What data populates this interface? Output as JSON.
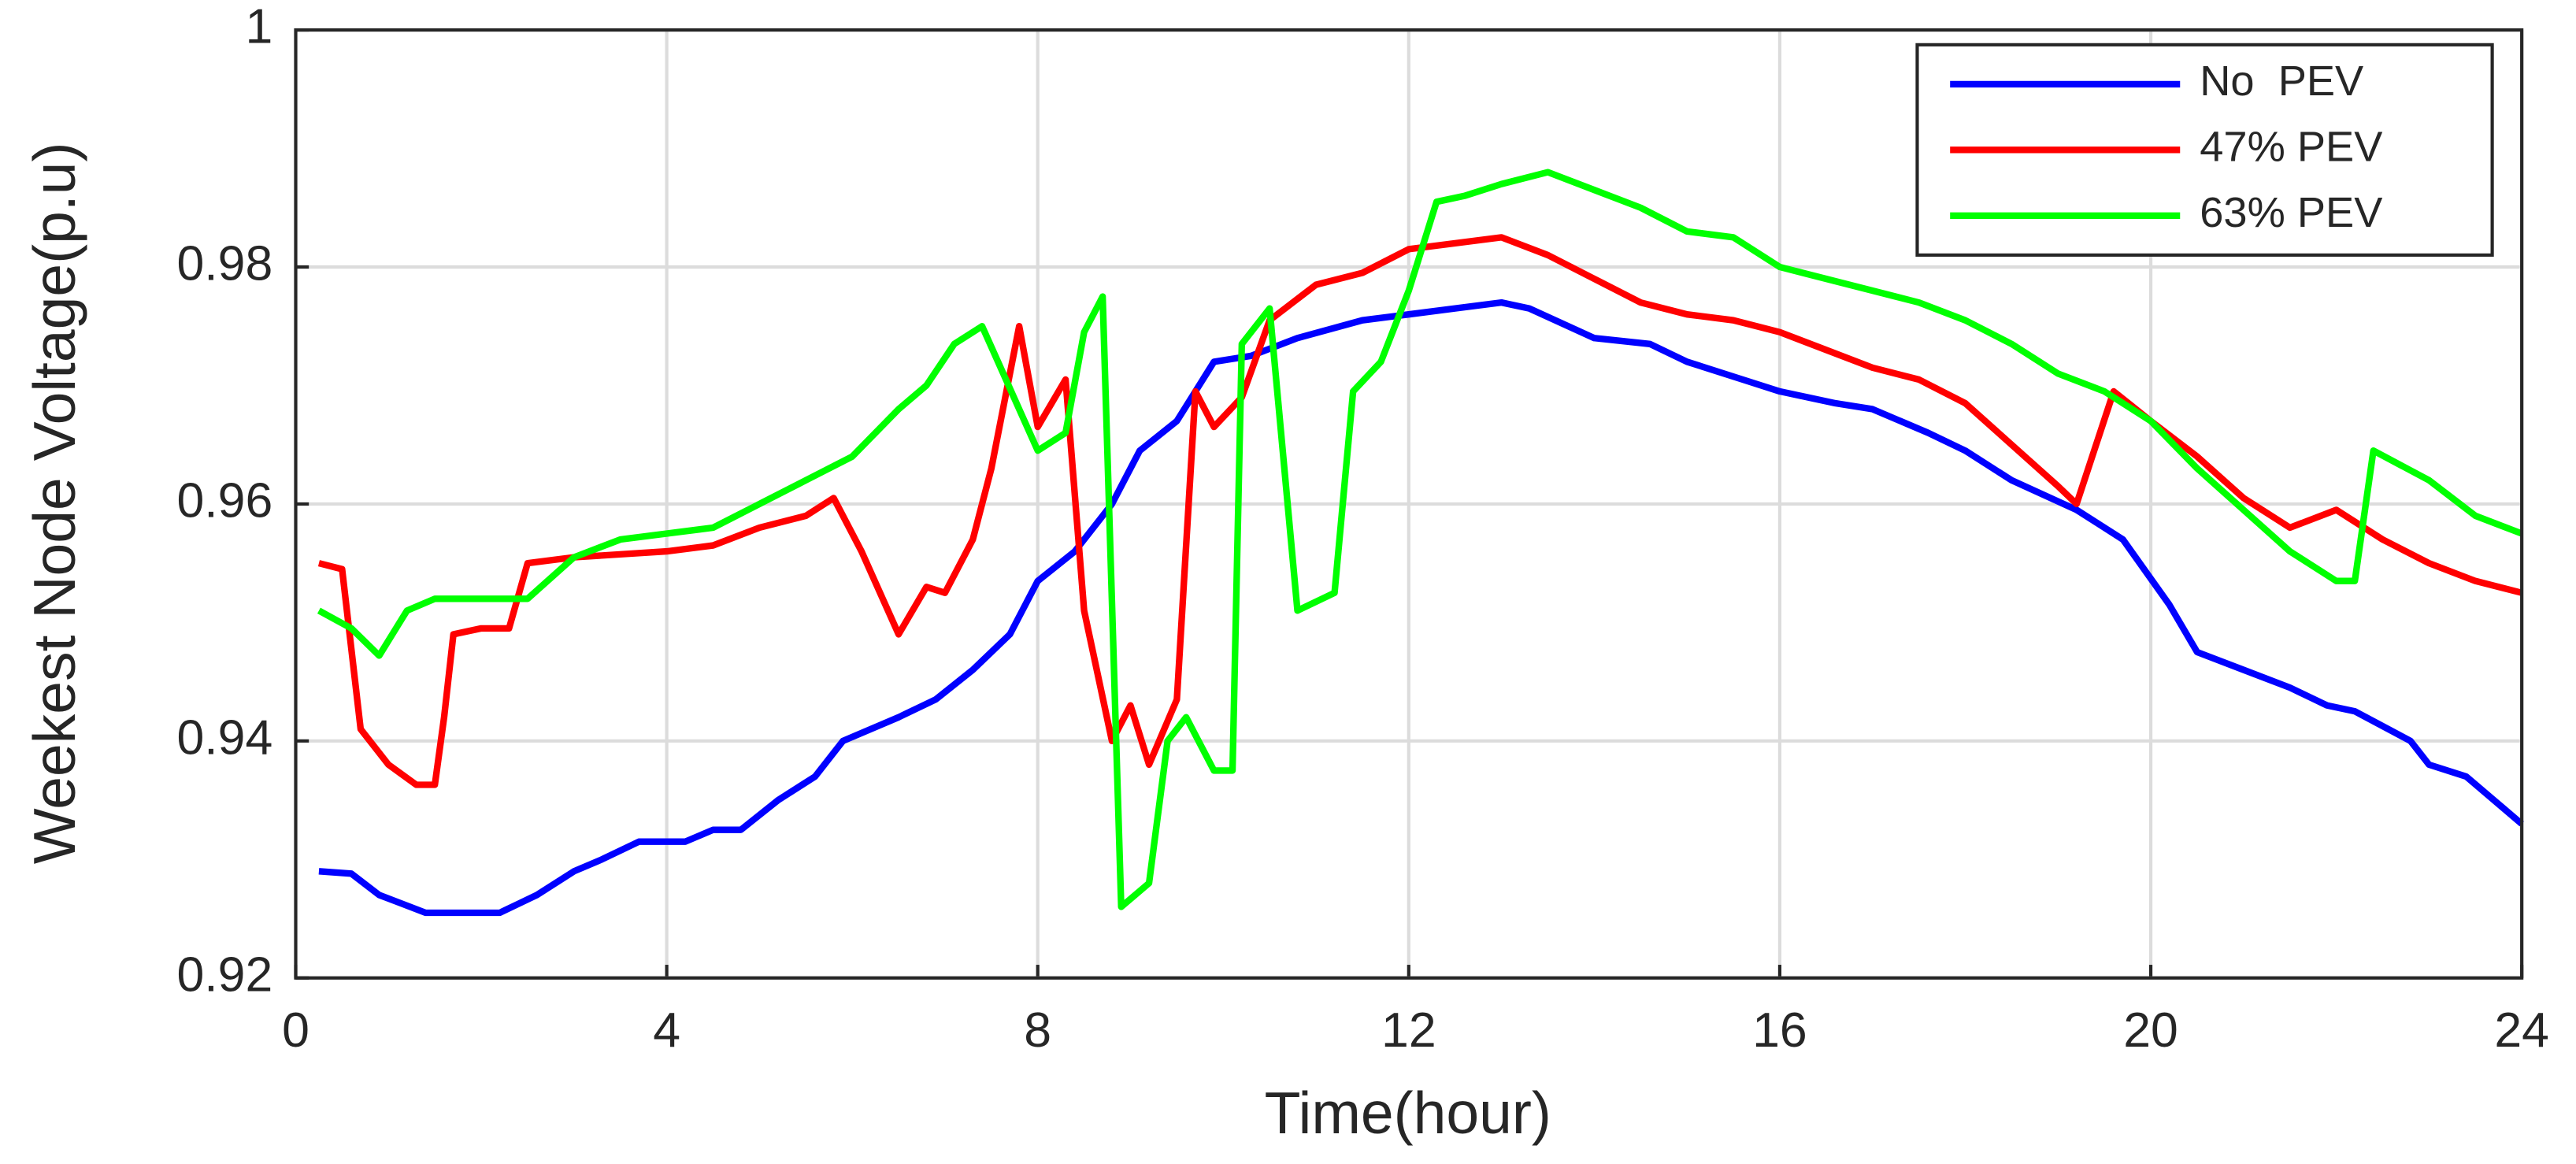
{
  "chart_data": {
    "type": "line",
    "xlabel": "Time(hour)",
    "ylabel": "Weekest Node Voltage(p.u)",
    "xlim": [
      0,
      24
    ],
    "xticks": [
      0,
      4,
      8,
      12,
      16,
      20,
      24
    ],
    "ylim": [
      0.92,
      1
    ],
    "yticks": [
      0.92,
      0.94,
      0.96,
      0.98,
      1
    ],
    "grid": true,
    "legend": "upper right",
    "series": [
      {
        "name": "No  PEV",
        "color": "#0000ff",
        "x": [
          0.25,
          0.6,
          0.9,
          1.4,
          2.2,
          2.6,
          3.0,
          3.3,
          3.7,
          4.2,
          4.5,
          4.8,
          5.2,
          5.6,
          5.9,
          6.5,
          6.9,
          7.3,
          7.7,
          8.0,
          8.4,
          8.8,
          9.1,
          9.5,
          9.9,
          10.3,
          10.8,
          11.5,
          12.0,
          12.5,
          13.0,
          13.3,
          14.0,
          14.6,
          15.0,
          15.6,
          16.0,
          16.6,
          17.0,
          17.6,
          18.0,
          18.5,
          19.2,
          19.7,
          20.2,
          20.5,
          21.0,
          21.5,
          21.9,
          22.2,
          22.8,
          23.0,
          23.4,
          24.0
        ],
        "values": [
          0.929,
          0.9288,
          0.927,
          0.9255,
          0.9255,
          0.927,
          0.929,
          0.93,
          0.9315,
          0.9315,
          0.9325,
          0.9325,
          0.935,
          0.937,
          0.94,
          0.942,
          0.9435,
          0.946,
          0.949,
          0.9535,
          0.956,
          0.96,
          0.9645,
          0.967,
          0.972,
          0.9725,
          0.974,
          0.9755,
          0.976,
          0.9765,
          0.977,
          0.9765,
          0.974,
          0.9735,
          0.972,
          0.9705,
          0.9695,
          0.9685,
          0.968,
          0.966,
          0.9645,
          0.962,
          0.9595,
          0.957,
          0.9515,
          0.9475,
          0.946,
          0.9445,
          0.943,
          0.9425,
          0.94,
          0.938,
          0.937,
          0.933
        ]
      },
      {
        "name": "47% PEV",
        "color": "#ff0000",
        "x": [
          0.25,
          0.5,
          0.7,
          1.0,
          1.3,
          1.5,
          1.6,
          1.7,
          2.0,
          2.3,
          2.5,
          3.0,
          4.0,
          4.5,
          5.0,
          5.5,
          5.8,
          6.1,
          6.5,
          6.8,
          7.0,
          7.3,
          7.5,
          7.8,
          8.0,
          8.3,
          8.5,
          8.8,
          9.0,
          9.2,
          9.5,
          9.7,
          9.9,
          10.2,
          10.5,
          11.0,
          11.5,
          12.0,
          12.5,
          13.0,
          13.5,
          14.0,
          14.5,
          15.0,
          15.5,
          16.0,
          16.5,
          17.0,
          17.5,
          18.0,
          18.5,
          19.0,
          19.2,
          19.6,
          20.0,
          20.5,
          21.0,
          21.5,
          22.0,
          22.5,
          23.0,
          23.5,
          24.0
        ],
        "values": [
          0.955,
          0.9545,
          0.941,
          0.938,
          0.9363,
          0.9363,
          0.942,
          0.949,
          0.9495,
          0.9495,
          0.955,
          0.9555,
          0.956,
          0.9565,
          0.958,
          0.959,
          0.9605,
          0.956,
          0.949,
          0.953,
          0.9525,
          0.957,
          0.963,
          0.975,
          0.9665,
          0.9705,
          0.951,
          0.94,
          0.943,
          0.938,
          0.9435,
          0.9695,
          0.9665,
          0.969,
          0.9755,
          0.9785,
          0.9795,
          0.9815,
          0.982,
          0.9825,
          0.981,
          0.979,
          0.977,
          0.976,
          0.9755,
          0.9745,
          0.973,
          0.9715,
          0.9705,
          0.9685,
          0.965,
          0.9615,
          0.96,
          0.9695,
          0.967,
          0.964,
          0.9605,
          0.958,
          0.9595,
          0.957,
          0.955,
          0.9535,
          0.9525
        ]
      },
      {
        "name": "63% PEV",
        "color": "#00ff00",
        "x": [
          0.25,
          0.6,
          0.9,
          1.2,
          1.5,
          2.5,
          3.0,
          3.5,
          4.0,
          4.5,
          5.0,
          5.5,
          6.0,
          6.5,
          6.8,
          7.1,
          7.4,
          7.8,
          8.0,
          8.3,
          8.5,
          8.7,
          8.9,
          9.2,
          9.4,
          9.6,
          9.9,
          10.1,
          10.2,
          10.5,
          10.8,
          11.2,
          11.4,
          11.7,
          12.0,
          12.3,
          12.6,
          13.0,
          13.5,
          14.0,
          14.5,
          15.0,
          15.5,
          16.0,
          16.5,
          17.0,
          17.5,
          18.0,
          18.5,
          19.0,
          19.5,
          20.0,
          20.5,
          21.0,
          21.5,
          22.0,
          22.2,
          22.4,
          23.0,
          23.5,
          24.0
        ],
        "values": [
          0.951,
          0.9495,
          0.9472,
          0.951,
          0.952,
          0.952,
          0.9555,
          0.957,
          0.9575,
          0.958,
          0.96,
          0.962,
          0.964,
          0.968,
          0.97,
          0.9735,
          0.975,
          0.968,
          0.9645,
          0.966,
          0.9745,
          0.9775,
          0.926,
          0.928,
          0.94,
          0.942,
          0.9375,
          0.9375,
          0.9735,
          0.9765,
          0.951,
          0.9525,
          0.9695,
          0.972,
          0.978,
          0.9855,
          0.986,
          0.987,
          0.988,
          0.9865,
          0.985,
          0.983,
          0.9825,
          0.98,
          0.979,
          0.978,
          0.977,
          0.9755,
          0.9735,
          0.971,
          0.9695,
          0.967,
          0.963,
          0.9595,
          0.956,
          0.9535,
          0.9535,
          0.9645,
          0.962,
          0.959,
          0.9575
        ]
      }
    ]
  }
}
